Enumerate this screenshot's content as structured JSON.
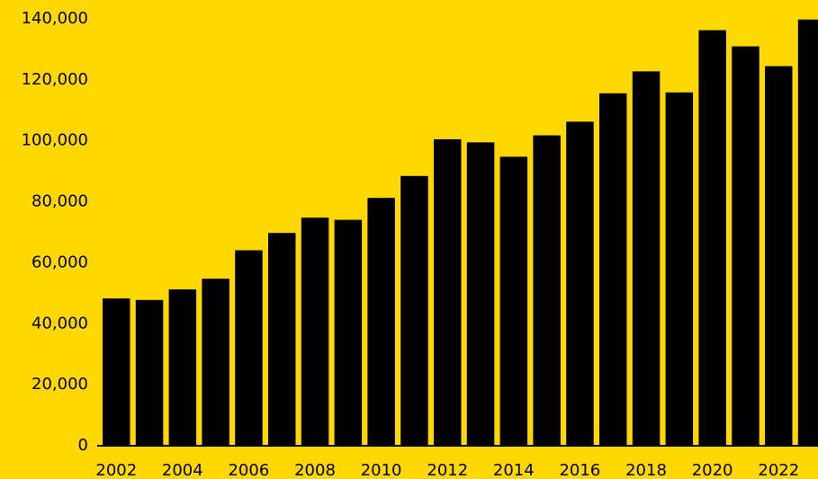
{
  "colors": {
    "background": "#FFD800",
    "bar": "#000000",
    "text": "#000000"
  },
  "chart_data": {
    "type": "bar",
    "categories": [
      "2002",
      "2003",
      "2004",
      "2005",
      "2006",
      "2007",
      "2008",
      "2009",
      "2010",
      "2011",
      "2012",
      "2013",
      "2014",
      "2015",
      "2016",
      "2017",
      "2018",
      "2019",
      "2020",
      "2021",
      "2022",
      "2023"
    ],
    "values": [
      48000,
      47500,
      51000,
      54500,
      63800,
      69500,
      74500,
      73800,
      81000,
      88200,
      100200,
      99200,
      94500,
      101500,
      106000,
      115300,
      122500,
      115600,
      136000,
      130700,
      124200,
      139500
    ],
    "y_ticks": [
      0,
      20000,
      40000,
      60000,
      80000,
      100000,
      120000,
      140000
    ],
    "y_tick_labels": [
      "0",
      "20,000",
      "40,000",
      "60,000",
      "80,000",
      "100,000",
      "120,000",
      "140,000"
    ],
    "x_tick_labels": [
      "2002",
      "2004",
      "2006",
      "2008",
      "2010",
      "2012",
      "2014",
      "2016",
      "2018",
      "2020",
      "2022"
    ],
    "ylim": [
      0,
      140000
    ],
    "title": "",
    "xlabel": "",
    "ylabel": "",
    "grid": false,
    "legend": "none"
  }
}
